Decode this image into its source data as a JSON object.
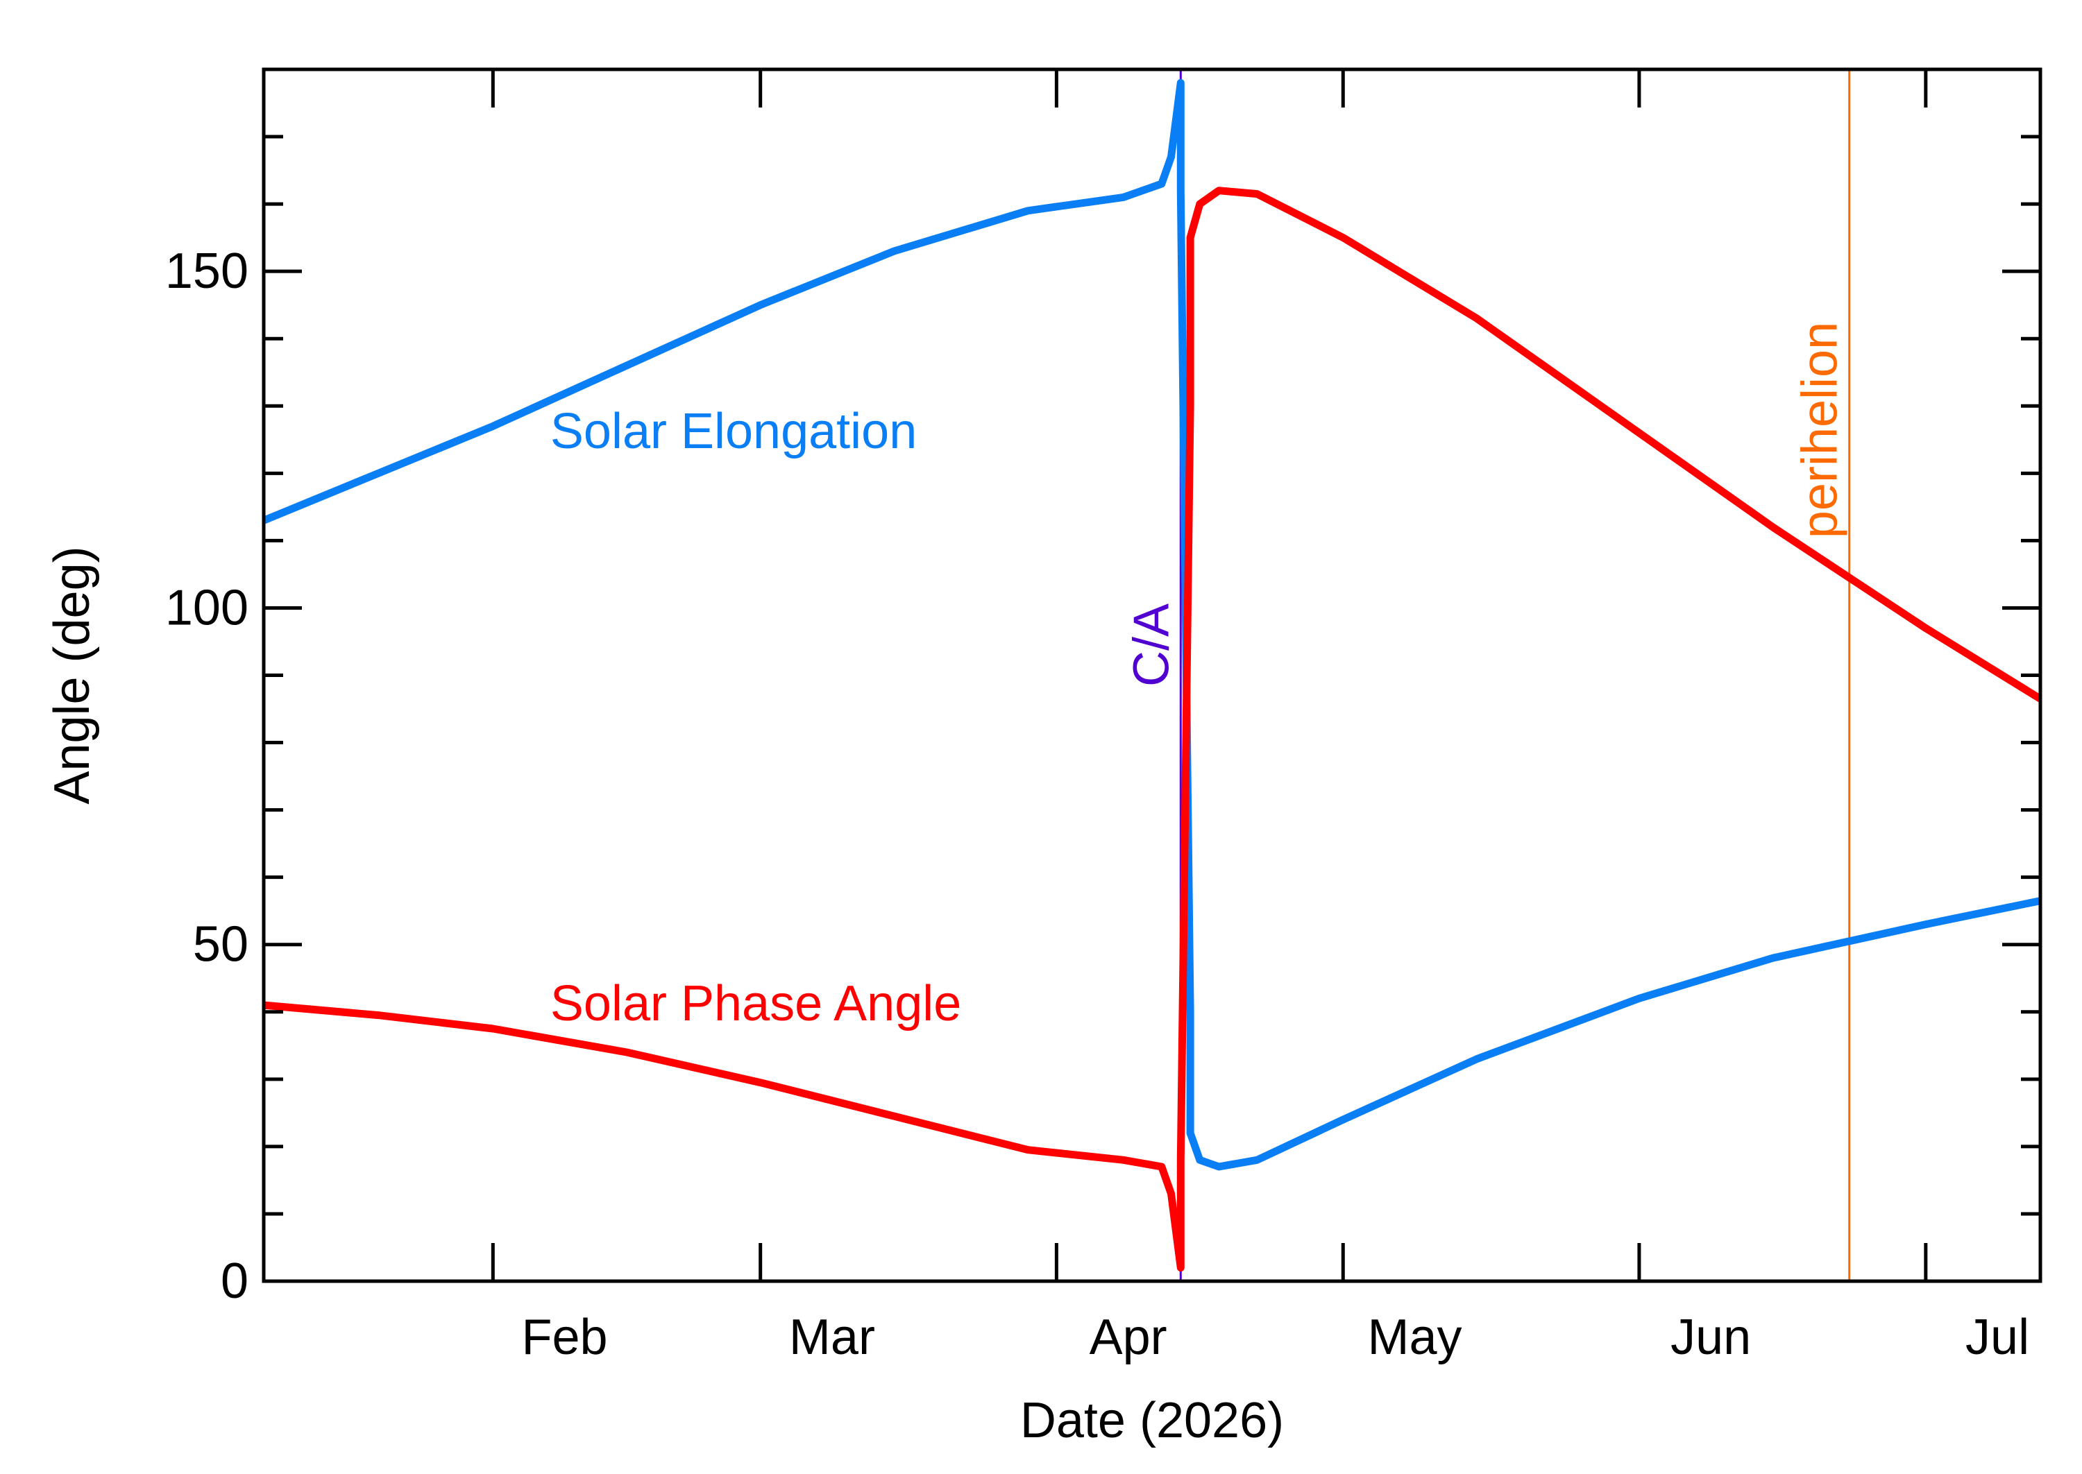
{
  "chart_data": {
    "type": "line",
    "title": "",
    "xlabel": "Date (2026)",
    "ylabel": "Angle (deg)",
    "xlim": [
      "2026-01-08",
      "2026-07-13"
    ],
    "ylim": [
      0,
      180
    ],
    "x_ticks": [
      {
        "date": "2026-02-01",
        "label": "Feb"
      },
      {
        "date": "2026-03-01",
        "label": "Mar"
      },
      {
        "date": "2026-04-01",
        "label": "Apr"
      },
      {
        "date": "2026-05-01",
        "label": "May"
      },
      {
        "date": "2026-06-01",
        "label": "Jun"
      },
      {
        "date": "2026-07-01",
        "label": "Jul"
      }
    ],
    "y_ticks": [
      {
        "value": 0,
        "label": "0"
      },
      {
        "value": 50,
        "label": "50"
      },
      {
        "value": 100,
        "label": "100"
      },
      {
        "value": 150,
        "label": "150"
      }
    ],
    "y_minor_step": 10,
    "grid": false,
    "series": [
      {
        "name": "Solar Elongation",
        "color": "#0a7ff5",
        "points": [
          [
            "2026-01-08",
            113
          ],
          [
            "2026-01-20",
            120
          ],
          [
            "2026-02-01",
            127
          ],
          [
            "2026-02-15",
            136
          ],
          [
            "2026-03-01",
            145
          ],
          [
            "2026-03-15",
            153
          ],
          [
            "2026-03-29",
            159
          ],
          [
            "2026-04-08",
            161
          ],
          [
            "2026-04-12",
            163
          ],
          [
            "2026-04-13",
            167
          ],
          [
            "2026-04-14",
            178
          ],
          [
            "2026-04-14",
            162
          ],
          [
            "2026-04-15",
            40
          ],
          [
            "2026-04-15",
            22
          ],
          [
            "2026-04-16",
            18
          ],
          [
            "2026-04-18",
            17
          ],
          [
            "2026-04-22",
            18
          ],
          [
            "2026-05-01",
            24
          ],
          [
            "2026-05-15",
            33
          ],
          [
            "2026-06-01",
            42
          ],
          [
            "2026-06-15",
            48
          ],
          [
            "2026-07-01",
            53
          ],
          [
            "2026-07-13",
            56.5
          ]
        ]
      },
      {
        "name": "Solar Phase Angle",
        "color": "#ff0000",
        "points": [
          [
            "2026-01-08",
            41
          ],
          [
            "2026-01-20",
            39.5
          ],
          [
            "2026-02-01",
            37.5
          ],
          [
            "2026-02-15",
            34
          ],
          [
            "2026-03-01",
            29.5
          ],
          [
            "2026-03-15",
            24.5
          ],
          [
            "2026-03-29",
            19.5
          ],
          [
            "2026-04-08",
            18
          ],
          [
            "2026-04-12",
            17
          ],
          [
            "2026-04-13",
            13
          ],
          [
            "2026-04-14",
            2
          ],
          [
            "2026-04-14",
            18
          ],
          [
            "2026-04-15",
            130
          ],
          [
            "2026-04-15",
            155
          ],
          [
            "2026-04-16",
            160
          ],
          [
            "2026-04-18",
            162
          ],
          [
            "2026-04-22",
            161.5
          ],
          [
            "2026-05-01",
            155
          ],
          [
            "2026-05-15",
            143
          ],
          [
            "2026-06-01",
            126
          ],
          [
            "2026-06-15",
            112
          ],
          [
            "2026-07-01",
            97
          ],
          [
            "2026-07-13",
            86.5
          ]
        ]
      }
    ],
    "markers": [
      {
        "name": "C/A",
        "date": "2026-04-14",
        "color": "#5000d0"
      },
      {
        "name": "perihelion",
        "date": "2026-06-23",
        "color": "#ff6a00"
      }
    ],
    "annotations": [
      {
        "text": "Solar Elongation",
        "color": "#0a7ff5",
        "date": "2026-02-07",
        "value": 126
      },
      {
        "text": "Solar Phase Angle",
        "color": "#ff0000",
        "date": "2026-02-07",
        "value": 41
      }
    ]
  }
}
